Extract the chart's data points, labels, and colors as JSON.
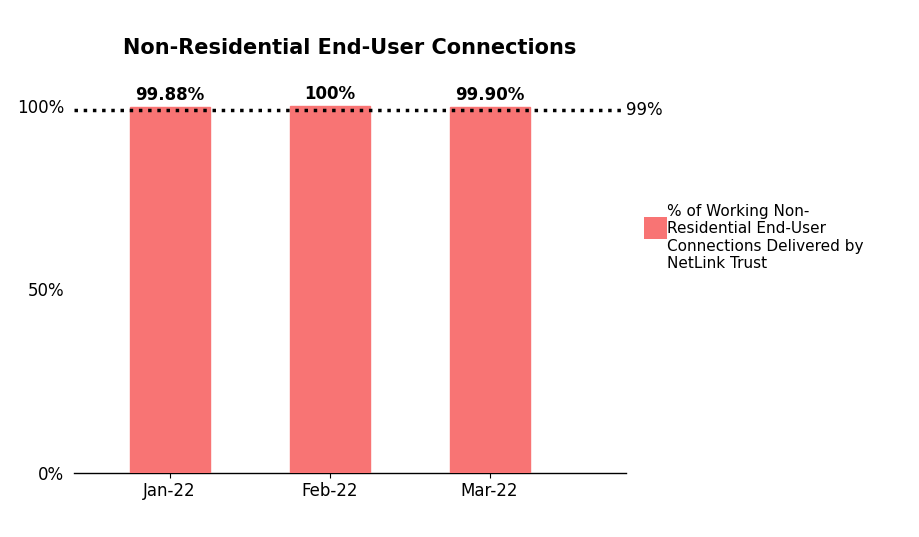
{
  "title": "Non-Residential End-User Connections",
  "categories": [
    "Jan-22",
    "Feb-22",
    "Mar-22"
  ],
  "values": [
    99.88,
    100.0,
    99.9
  ],
  "bar_labels": [
    "99.88%",
    "100%",
    "99.90%"
  ],
  "bar_color": "#F87474",
  "target_line": 99.0,
  "target_label": "99%",
  "yticks": [
    0,
    50,
    100
  ],
  "ytick_labels": [
    "0%",
    "50%",
    "100%"
  ],
  "ylim": [
    0,
    110
  ],
  "legend_label": "% of Working Non-\nResidential End-User\nConnections Delivered by\nNetLink Trust",
  "title_fontsize": 15,
  "label_fontsize": 12,
  "tick_fontsize": 12,
  "background_color": "#ffffff"
}
